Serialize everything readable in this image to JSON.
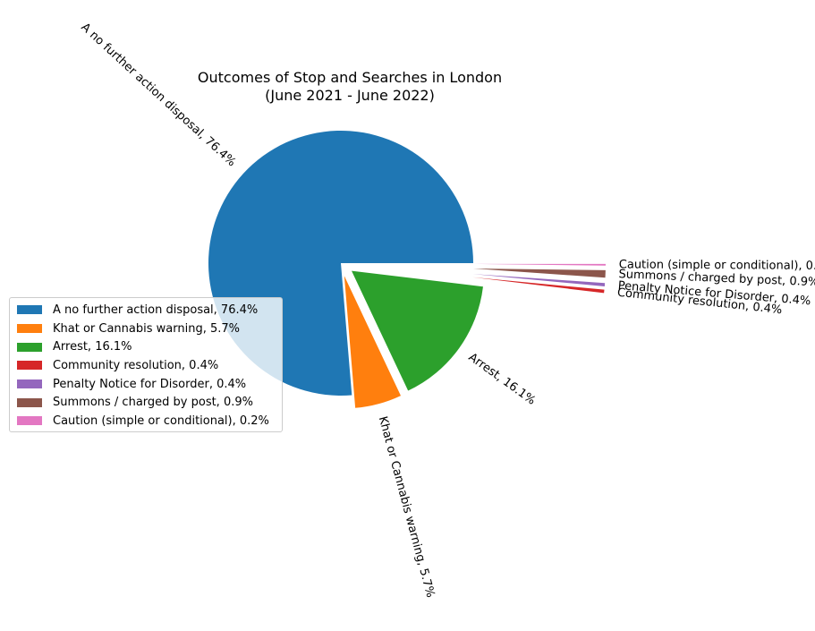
{
  "chart_data": {
    "type": "pie",
    "title_lines": [
      "Outcomes of Stop and Searches in London",
      "(June 2021 - June 2022)"
    ],
    "slices": [
      {
        "label": "A no further action disposal, 76.4%",
        "value": 76.4,
        "color": "#1f77b4"
      },
      {
        "label": "Khat or Cannabis warning, 5.7%",
        "value": 5.7,
        "color": "#ff7f0e"
      },
      {
        "label": "Arrest, 16.1%",
        "value": 16.1,
        "color": "#2ca02c"
      },
      {
        "label": "Community resolution, 0.4%",
        "value": 0.4,
        "color": "#d62728"
      },
      {
        "label": "Penalty Notice for Disorder, 0.4%",
        "value": 0.4,
        "color": "#9467bd"
      },
      {
        "label": "Summons / charged by post, 0.9%",
        "value": 0.9,
        "color": "#8c564b"
      },
      {
        "label": "Caution (simple or conditional), 0.2%",
        "value": 0.2,
        "color": "#e377c2"
      }
    ],
    "start_angle_deg": 0,
    "explode": [
      0,
      0.1,
      0.1,
      1.0,
      1.0,
      1.0,
      1.0
    ],
    "legend_position": "center-left"
  }
}
